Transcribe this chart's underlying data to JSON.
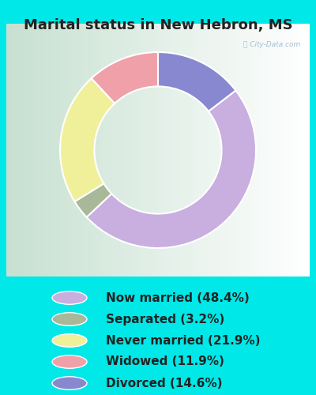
{
  "title": "Marital status in New Hebron, MS",
  "ordered_sizes": [
    48.4,
    3.2,
    21.9,
    11.9,
    14.6
  ],
  "ordered_colors": [
    "#c9aee0",
    "#a8b898",
    "#f0f09a",
    "#f0a0a8",
    "#8888d0"
  ],
  "labels": [
    "Now married (48.4%)",
    "Separated (3.2%)",
    "Never married (21.9%)",
    "Widowed (11.9%)",
    "Divorced (14.6%)"
  ],
  "legend_colors": [
    "#c9aee0",
    "#a8b898",
    "#f0f09a",
    "#f0a0a8",
    "#8888d0"
  ],
  "start_angle": 90,
  "cyan_bg": "#00e8e8",
  "chart_bg_left": "#c8e8d0",
  "chart_bg_right": "#e8f0f0",
  "title_fontsize": 13,
  "legend_fontsize": 11,
  "watermark": "City-Data.com"
}
